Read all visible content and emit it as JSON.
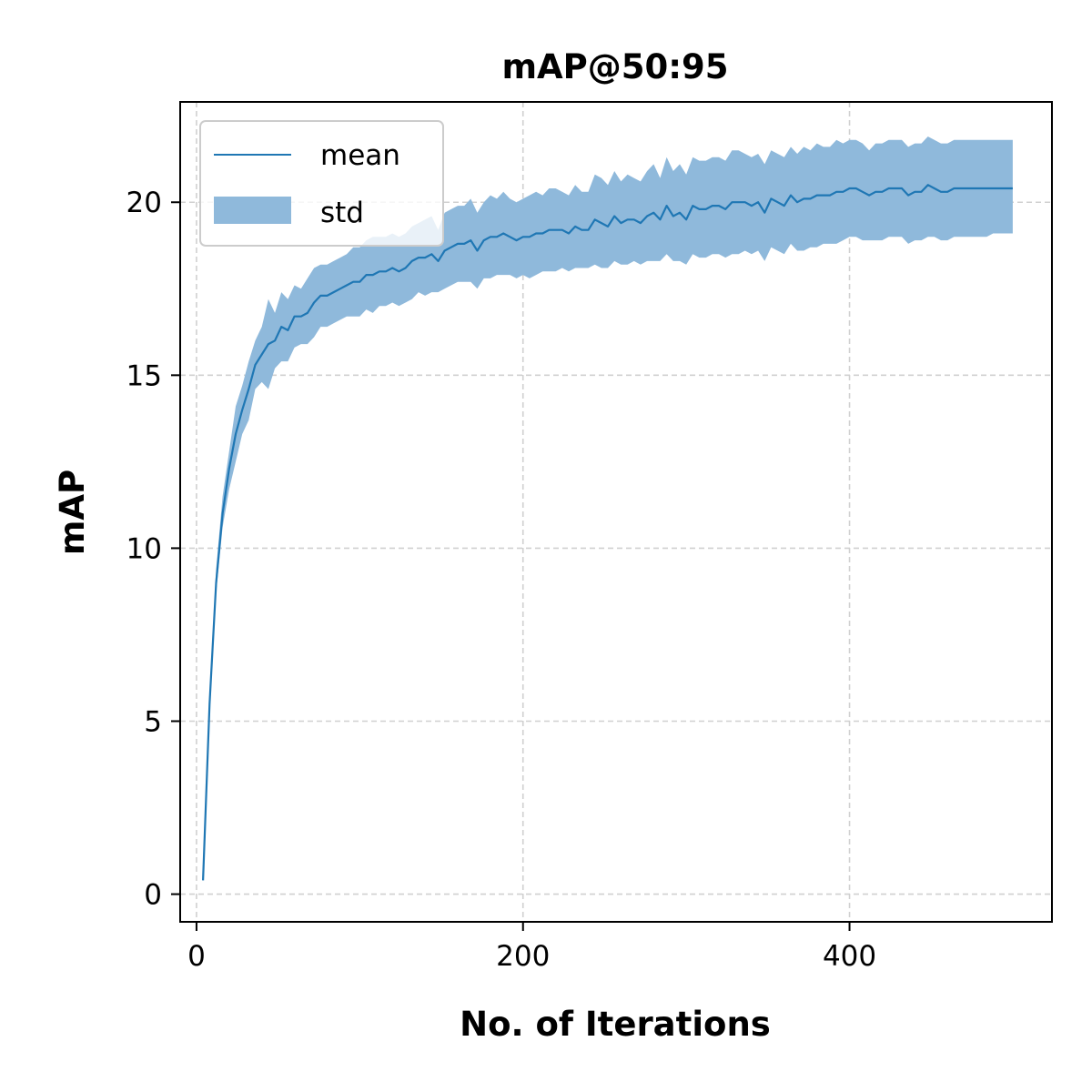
{
  "chart_data": {
    "type": "line",
    "title": "mAP@50:95",
    "xlabel": "No. of Iterations",
    "ylabel": "mAP",
    "xlim": [
      -10,
      524
    ],
    "ylim": [
      -0.8,
      22.9
    ],
    "xticks": [
      0,
      200,
      400
    ],
    "yticks": [
      0,
      5,
      10,
      15,
      20
    ],
    "grid": true,
    "legend_position": "upper-left",
    "colors": {
      "line": "#1f77b4",
      "band": "#8fb9db"
    },
    "series": [
      {
        "name": "mean",
        "kind": "line",
        "x": [
          4,
          8,
          12,
          16,
          20,
          24,
          28,
          32,
          36,
          40,
          44,
          48,
          52,
          56,
          60,
          64,
          68,
          72,
          76,
          80,
          84,
          88,
          92,
          96,
          100,
          104,
          108,
          112,
          116,
          120,
          124,
          128,
          132,
          136,
          140,
          144,
          148,
          152,
          156,
          160,
          164,
          168,
          172,
          176,
          180,
          184,
          188,
          192,
          196,
          200,
          204,
          208,
          212,
          216,
          220,
          224,
          228,
          232,
          236,
          240,
          244,
          248,
          252,
          256,
          260,
          264,
          268,
          272,
          276,
          280,
          284,
          288,
          292,
          296,
          300,
          304,
          308,
          312,
          316,
          320,
          324,
          328,
          332,
          336,
          340,
          344,
          348,
          352,
          356,
          360,
          364,
          368,
          372,
          376,
          380,
          384,
          388,
          392,
          396,
          400,
          404,
          408,
          412,
          416,
          420,
          424,
          428,
          432,
          436,
          440,
          444,
          448,
          452,
          456,
          460,
          464,
          468,
          472,
          476,
          480,
          484,
          488,
          492,
          496,
          500
        ],
        "y": [
          0.4,
          5.5,
          9.0,
          11.0,
          12.3,
          13.3,
          14.0,
          14.6,
          15.3,
          15.6,
          15.9,
          16.0,
          16.4,
          16.3,
          16.7,
          16.7,
          16.8,
          17.1,
          17.3,
          17.3,
          17.4,
          17.5,
          17.6,
          17.7,
          17.7,
          17.9,
          17.9,
          18.0,
          18.0,
          18.1,
          18.0,
          18.1,
          18.3,
          18.4,
          18.4,
          18.5,
          18.3,
          18.6,
          18.7,
          18.8,
          18.8,
          18.9,
          18.6,
          18.9,
          19.0,
          19.0,
          19.1,
          19.0,
          18.9,
          19.0,
          19.0,
          19.1,
          19.1,
          19.2,
          19.2,
          19.2,
          19.1,
          19.3,
          19.2,
          19.2,
          19.5,
          19.4,
          19.3,
          19.6,
          19.4,
          19.5,
          19.5,
          19.4,
          19.6,
          19.7,
          19.5,
          19.9,
          19.6,
          19.7,
          19.5,
          19.9,
          19.8,
          19.8,
          19.9,
          19.9,
          19.8,
          20.0,
          20.0,
          20.0,
          19.9,
          20.0,
          19.7,
          20.1,
          20.0,
          19.9,
          20.2,
          20.0,
          20.1,
          20.1,
          20.2,
          20.2,
          20.2,
          20.3,
          20.3,
          20.4,
          20.4,
          20.3,
          20.2,
          20.3,
          20.3,
          20.4,
          20.4,
          20.4,
          20.2,
          20.3,
          20.3,
          20.5,
          20.4,
          20.3,
          20.3,
          20.4,
          20.4,
          20.4,
          20.4,
          20.4,
          20.4,
          20.4,
          20.4,
          20.4,
          20.4
        ]
      },
      {
        "name": "std",
        "kind": "band",
        "x": [
          4,
          8,
          12,
          16,
          20,
          24,
          28,
          32,
          36,
          40,
          44,
          48,
          52,
          56,
          60,
          64,
          68,
          72,
          76,
          80,
          84,
          88,
          92,
          96,
          100,
          104,
          108,
          112,
          116,
          120,
          124,
          128,
          132,
          136,
          140,
          144,
          148,
          152,
          156,
          160,
          164,
          168,
          172,
          176,
          180,
          184,
          188,
          192,
          196,
          200,
          204,
          208,
          212,
          216,
          220,
          224,
          228,
          232,
          236,
          240,
          244,
          248,
          252,
          256,
          260,
          264,
          268,
          272,
          276,
          280,
          284,
          288,
          292,
          296,
          300,
          304,
          308,
          312,
          316,
          320,
          324,
          328,
          332,
          336,
          340,
          344,
          348,
          352,
          356,
          360,
          364,
          368,
          372,
          376,
          380,
          384,
          388,
          392,
          396,
          400,
          404,
          408,
          412,
          416,
          420,
          424,
          428,
          432,
          436,
          440,
          444,
          448,
          452,
          456,
          460,
          464,
          468,
          472,
          476,
          480,
          484,
          488,
          492,
          496,
          500
        ],
        "lower": [
          0.4,
          5.3,
          8.7,
          10.6,
          11.7,
          12.5,
          13.3,
          13.7,
          14.6,
          14.8,
          14.6,
          15.2,
          15.4,
          15.4,
          15.8,
          15.9,
          15.9,
          16.1,
          16.4,
          16.4,
          16.5,
          16.6,
          16.7,
          16.7,
          16.7,
          16.9,
          16.8,
          17.0,
          17.0,
          17.1,
          17.0,
          17.1,
          17.2,
          17.4,
          17.3,
          17.4,
          17.4,
          17.5,
          17.6,
          17.7,
          17.7,
          17.7,
          17.5,
          17.8,
          17.8,
          17.9,
          17.9,
          17.9,
          17.8,
          17.9,
          17.8,
          17.9,
          18.0,
          18.0,
          18.0,
          18.1,
          18.0,
          18.1,
          18.1,
          18.1,
          18.2,
          18.1,
          18.1,
          18.3,
          18.2,
          18.2,
          18.3,
          18.2,
          18.3,
          18.3,
          18.3,
          18.5,
          18.3,
          18.3,
          18.2,
          18.5,
          18.4,
          18.4,
          18.5,
          18.5,
          18.4,
          18.5,
          18.5,
          18.6,
          18.5,
          18.6,
          18.3,
          18.7,
          18.6,
          18.5,
          18.8,
          18.6,
          18.6,
          18.7,
          18.7,
          18.8,
          18.8,
          18.8,
          18.9,
          19.0,
          19.0,
          18.9,
          18.9,
          18.9,
          18.9,
          19.0,
          19.0,
          19.0,
          18.8,
          18.9,
          18.9,
          19.0,
          19.0,
          18.9,
          18.9,
          19.0,
          19.0,
          19.0,
          19.0,
          19.0,
          19.0,
          19.1,
          19.1,
          19.1,
          19.1
        ],
        "upper": [
          0.4,
          5.7,
          9.4,
          11.5,
          12.8,
          14.1,
          14.7,
          15.4,
          16.0,
          16.4,
          17.2,
          16.8,
          17.4,
          17.2,
          17.6,
          17.5,
          17.8,
          18.1,
          18.2,
          18.2,
          18.3,
          18.4,
          18.5,
          18.7,
          18.7,
          18.9,
          19.0,
          19.0,
          19.0,
          19.1,
          19.0,
          19.1,
          19.3,
          19.4,
          19.5,
          19.6,
          19.2,
          19.7,
          19.8,
          19.9,
          19.9,
          20.1,
          19.7,
          20.0,
          20.2,
          20.1,
          20.3,
          20.1,
          20.0,
          20.1,
          20.2,
          20.3,
          20.2,
          20.4,
          20.4,
          20.3,
          20.2,
          20.5,
          20.3,
          20.3,
          20.8,
          20.7,
          20.5,
          20.9,
          20.6,
          20.8,
          20.7,
          20.6,
          20.9,
          21.1,
          20.7,
          21.3,
          20.9,
          21.1,
          20.8,
          21.3,
          21.2,
          21.2,
          21.3,
          21.3,
          21.2,
          21.5,
          21.5,
          21.4,
          21.3,
          21.4,
          21.1,
          21.5,
          21.4,
          21.3,
          21.6,
          21.4,
          21.6,
          21.5,
          21.7,
          21.6,
          21.6,
          21.8,
          21.7,
          21.8,
          21.8,
          21.7,
          21.5,
          21.7,
          21.7,
          21.8,
          21.8,
          21.8,
          21.6,
          21.7,
          21.7,
          21.9,
          21.8,
          21.7,
          21.7,
          21.8,
          21.8,
          21.8,
          21.8,
          21.8,
          21.8,
          21.8,
          21.8,
          21.8,
          21.8
        ]
      }
    ]
  }
}
